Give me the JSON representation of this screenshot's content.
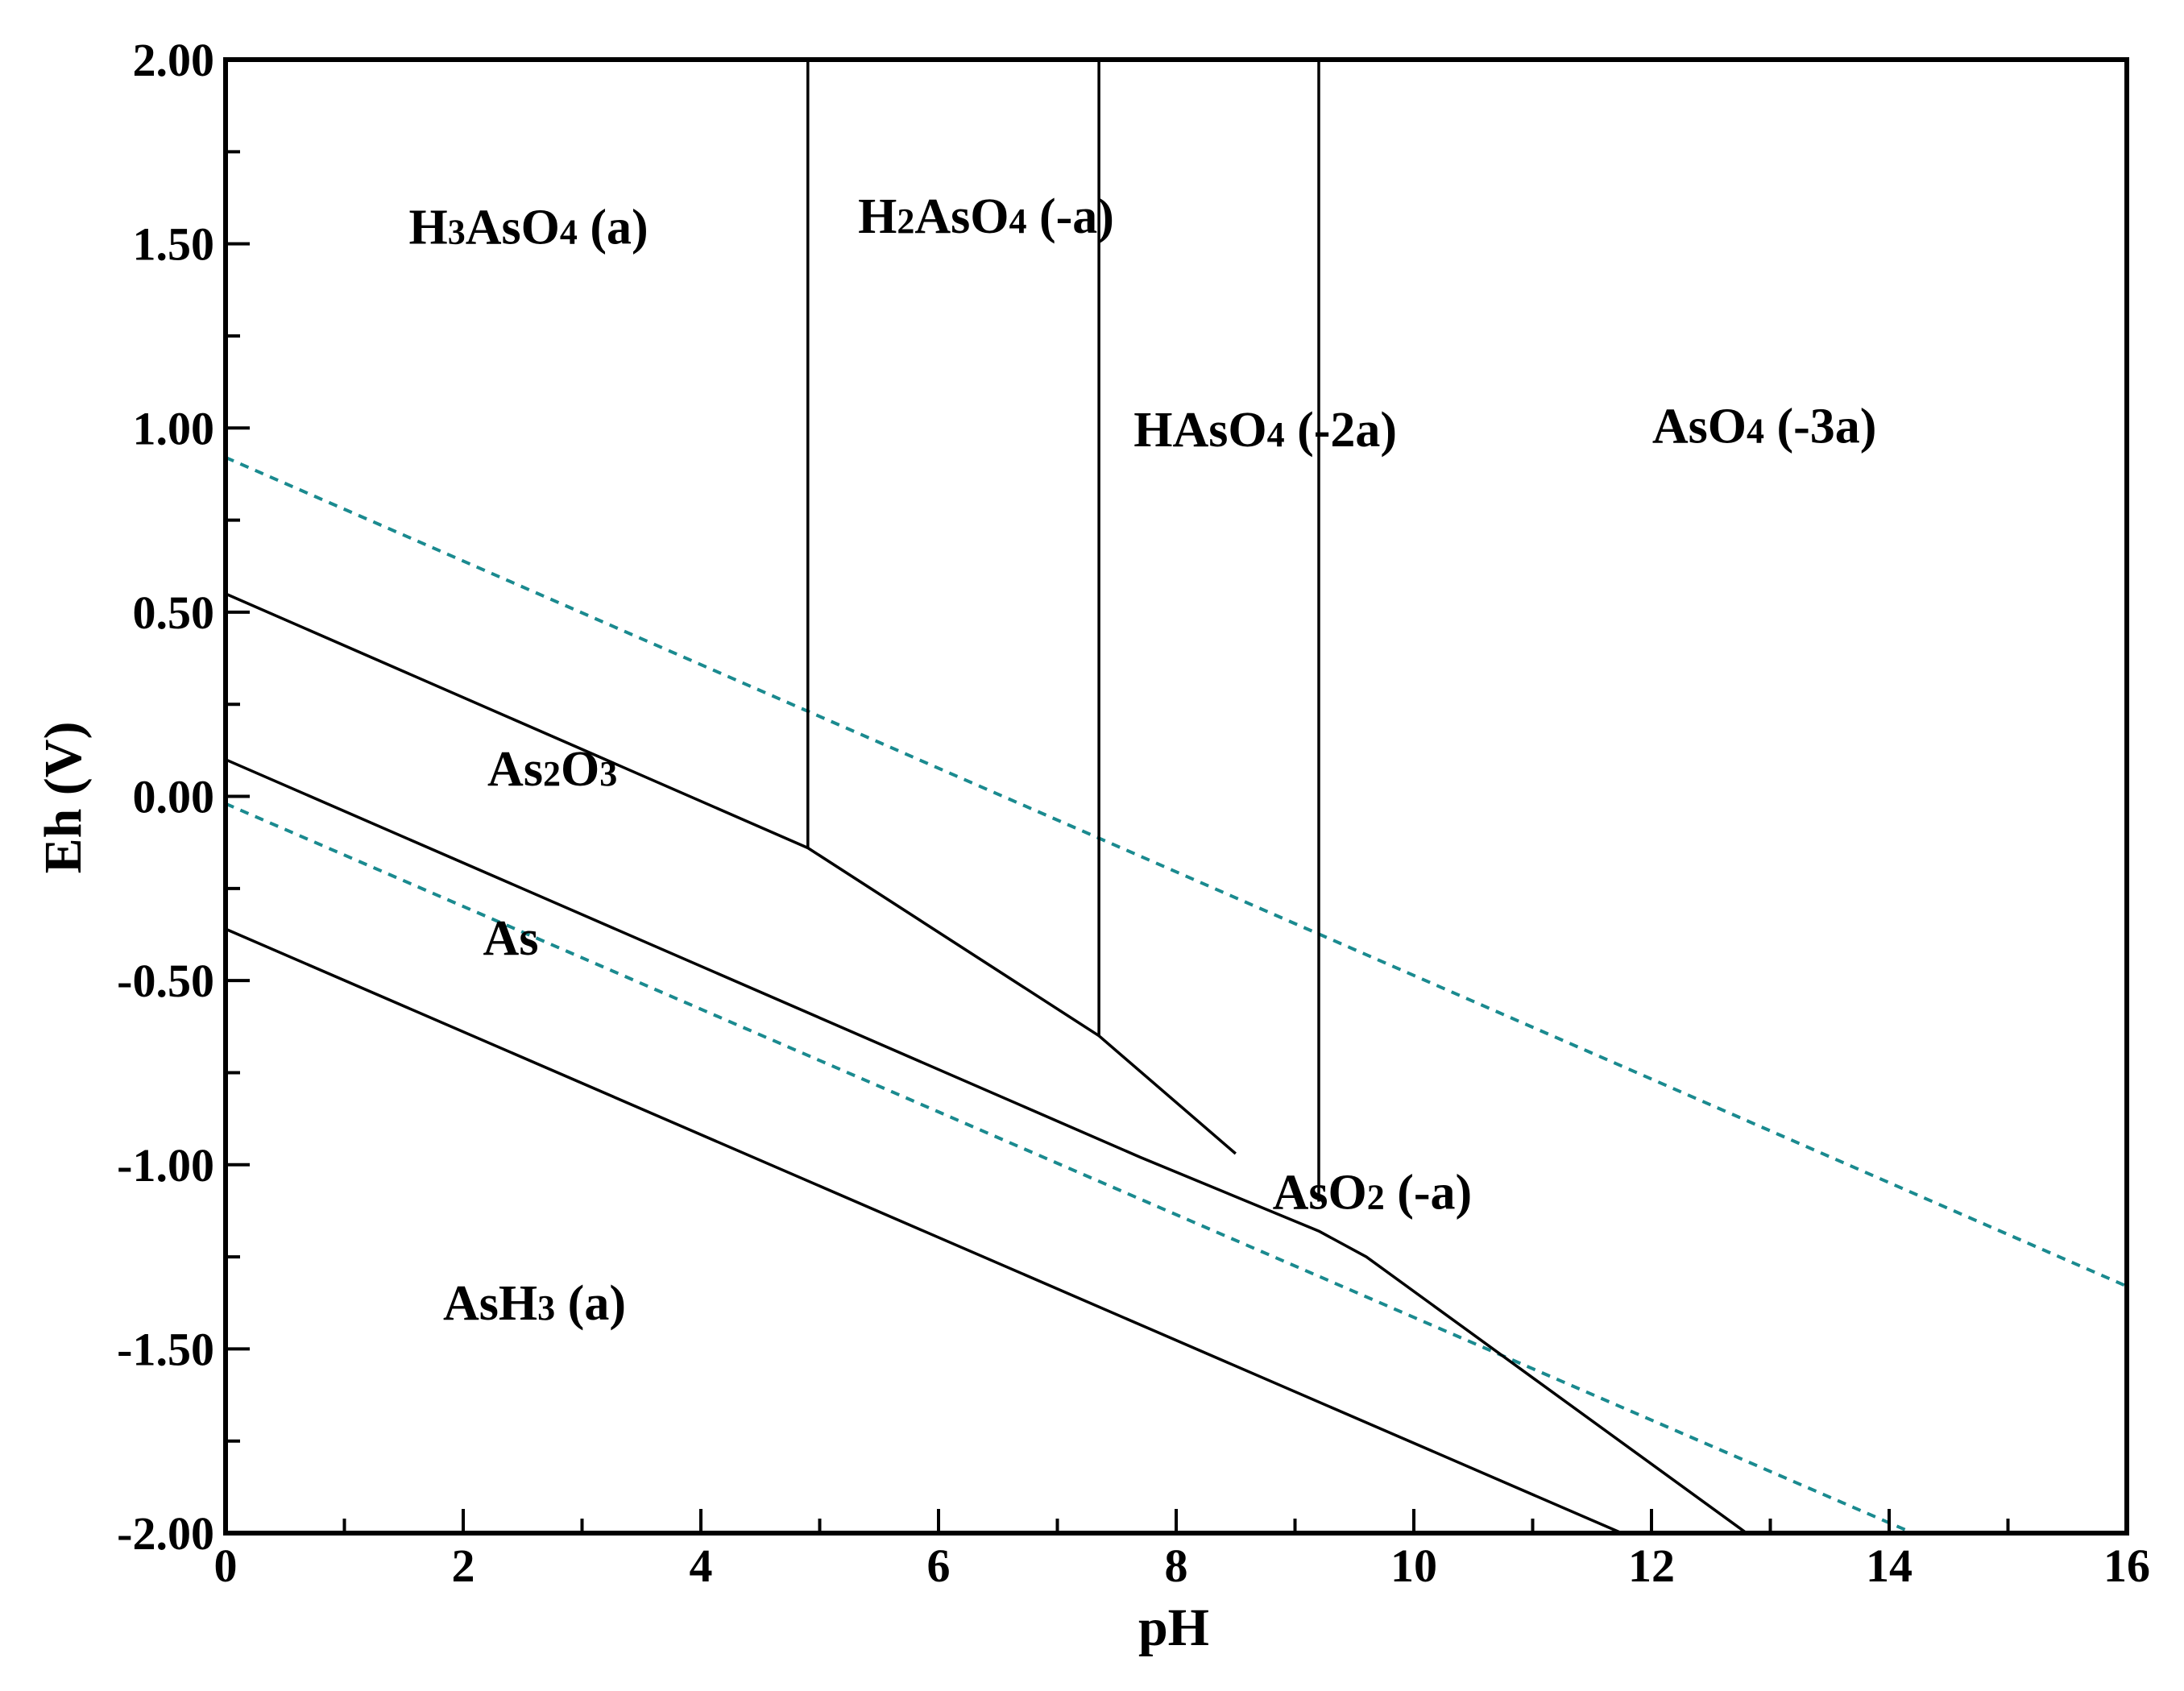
{
  "chart_data": {
    "type": "line",
    "title": "",
    "xlabel": "pH",
    "ylabel": "Eh (V)",
    "xlim": [
      0,
      16
    ],
    "ylim": [
      -2.0,
      2.0
    ],
    "x_ticks": [
      0,
      2,
      4,
      6,
      8,
      10,
      12,
      14,
      16
    ],
    "x_tick_labels": [
      "0",
      "2",
      "4",
      "6",
      "8",
      "10",
      "12",
      "14",
      "16"
    ],
    "x_minor_step": 1,
    "y_ticks": [
      2.0,
      1.5,
      1.0,
      0.5,
      0.0,
      -0.5,
      -1.0,
      -1.5,
      -2.0
    ],
    "y_tick_labels": [
      "2.00",
      "1.50",
      "1.00",
      "0.50",
      "0.00",
      "-0.50",
      "-1.00",
      "-1.50",
      "-2.00"
    ],
    "y_minor_step": 0.25,
    "grid": false,
    "line_color": "#000000",
    "water_line_color": "#1a8a8f",
    "boundaries": [
      {
        "points": [
          [
            0,
            0.55
          ],
          [
            4.9,
            -0.14
          ],
          [
            7.35,
            -0.65
          ],
          [
            8.5,
            -0.97
          ]
        ]
      },
      {
        "points": [
          [
            4.9,
            2.0
          ],
          [
            4.9,
            -0.14
          ]
        ]
      },
      {
        "points": [
          [
            7.35,
            2.0
          ],
          [
            7.35,
            -0.65
          ]
        ]
      },
      {
        "points": [
          [
            9.2,
            2.0
          ],
          [
            9.2,
            -1.1
          ]
        ]
      },
      {
        "points": [
          [
            0,
            0.1
          ],
          [
            7.7,
            -0.98
          ],
          [
            9.2,
            -1.18
          ],
          [
            9.6,
            -1.25
          ],
          [
            12.8,
            -2.0
          ]
        ]
      },
      {
        "points": [
          [
            0,
            -0.36
          ],
          [
            11.75,
            -2.0
          ]
        ]
      }
    ],
    "water_lines": [
      {
        "points": [
          [
            0,
            0.92
          ],
          [
            16,
            -1.33
          ]
        ]
      },
      {
        "points": [
          [
            0,
            -0.02
          ],
          [
            14.2,
            -2.0
          ]
        ]
      }
    ],
    "region_labels": [
      {
        "text": "H3AsO4 (a)",
        "x": 2.55,
        "y": 1.5
      },
      {
        "text": "H2AsO4 (-a)",
        "x": 6.4,
        "y": 1.53
      },
      {
        "text": "HAsO4 (-2a)",
        "x": 8.75,
        "y": 0.95
      },
      {
        "text": "AsO4 (-3a)",
        "x": 12.95,
        "y": 0.96
      },
      {
        "text": "As2O3",
        "x": 2.75,
        "y": 0.03
      },
      {
        "text": "As",
        "x": 2.4,
        "y": -0.43
      },
      {
        "text": "AsO2 (-a)",
        "x": 9.65,
        "y": -1.12
      },
      {
        "text": "AsH3 (a)",
        "x": 2.6,
        "y": -1.42
      }
    ]
  }
}
